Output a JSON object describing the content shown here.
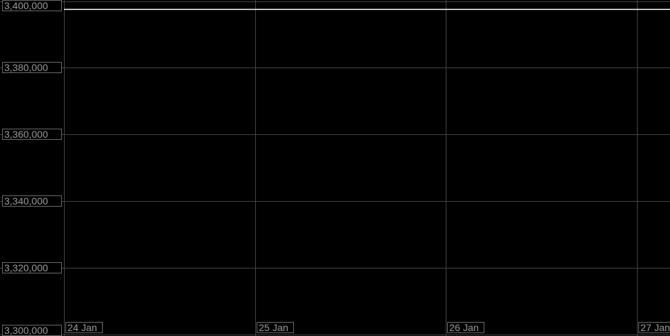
{
  "chart_data": {
    "type": "line",
    "title": "",
    "xlabel": "",
    "ylabel": "",
    "x_ticks": [
      "24 Jan",
      "25 Jan",
      "26 Jan",
      "27 Jan"
    ],
    "y_ticks": [
      "3,300,000",
      "3,320,000",
      "3,340,000",
      "3,360,000",
      "3,380,000",
      "3,400,000"
    ],
    "y_tick_values": [
      3300000,
      3320000,
      3340000,
      3360000,
      3380000,
      3400000
    ],
    "ylim": [
      3300000,
      3400000
    ],
    "xlim_days": [
      "24 Jan",
      "27 Jan+"
    ],
    "grid": true,
    "series": [
      {
        "x": [
          "24 Jan",
          "25 Jan",
          "26 Jan",
          "27 Jan"
        ],
        "values": [
          3397500,
          3397500,
          3397500,
          3397500
        ],
        "color": "#ffffff"
      }
    ],
    "colors": {
      "background": "#000000",
      "grid": "#444444",
      "label_text": "#9a9a9a",
      "label_border": "#6a6a6a",
      "line": "#ffffff"
    }
  }
}
